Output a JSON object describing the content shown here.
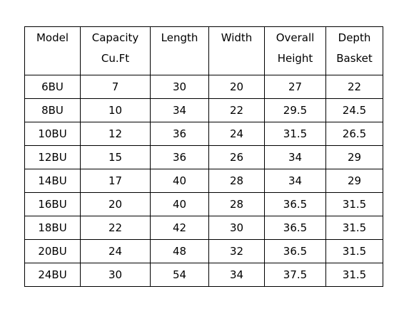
{
  "table": {
    "headers": [
      [
        "Model"
      ],
      [
        "Capacity",
        "Cu.Ft"
      ],
      [
        "Length"
      ],
      [
        "Width"
      ],
      [
        "Overall",
        "Height"
      ],
      [
        "Depth",
        "Basket"
      ]
    ],
    "rows": [
      [
        "6BU",
        "7",
        "30",
        "20",
        "27",
        "22"
      ],
      [
        "8BU",
        "10",
        "34",
        "22",
        "29.5",
        "24.5"
      ],
      [
        "10BU",
        "12",
        "36",
        "24",
        "31.5",
        "26.5"
      ],
      [
        "12BU",
        "15",
        "36",
        "26",
        "34",
        "29"
      ],
      [
        "14BU",
        "17",
        "40",
        "28",
        "34",
        "29"
      ],
      [
        "16BU",
        "20",
        "40",
        "28",
        "36.5",
        "31.5"
      ],
      [
        "18BU",
        "22",
        "42",
        "30",
        "36.5",
        "31.5"
      ],
      [
        "20BU",
        "24",
        "48",
        "32",
        "36.5",
        "31.5"
      ],
      [
        "24BU",
        "30",
        "54",
        "34",
        "37.5",
        "31.5"
      ]
    ]
  }
}
